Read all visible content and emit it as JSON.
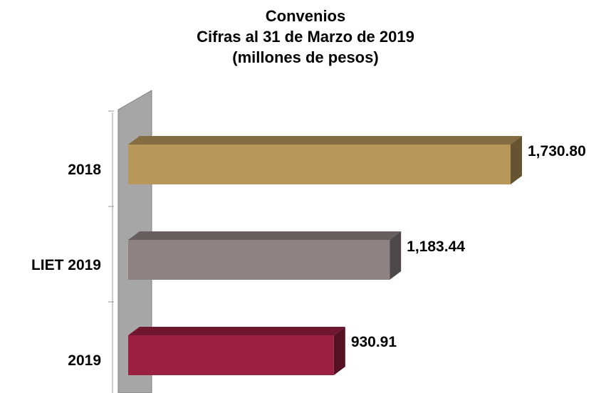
{
  "chart_data": {
    "type": "bar",
    "orientation": "horizontal",
    "title_lines": [
      "Convenios",
      "Cifras al 31 de Marzo de 2019",
      "(millones de pesos)"
    ],
    "categories": [
      "2018",
      "LIET 2019",
      "2019"
    ],
    "values": [
      1730.8,
      1183.44,
      930.91
    ],
    "value_labels": [
      "1,730.80",
      "1,183.44",
      "930.91"
    ],
    "colors": [
      "#B8975A",
      "#8F8283",
      "#9B2042"
    ],
    "xlim": [
      0,
      1730.8
    ],
    "grid": false,
    "legend": "none",
    "style": "3d"
  }
}
